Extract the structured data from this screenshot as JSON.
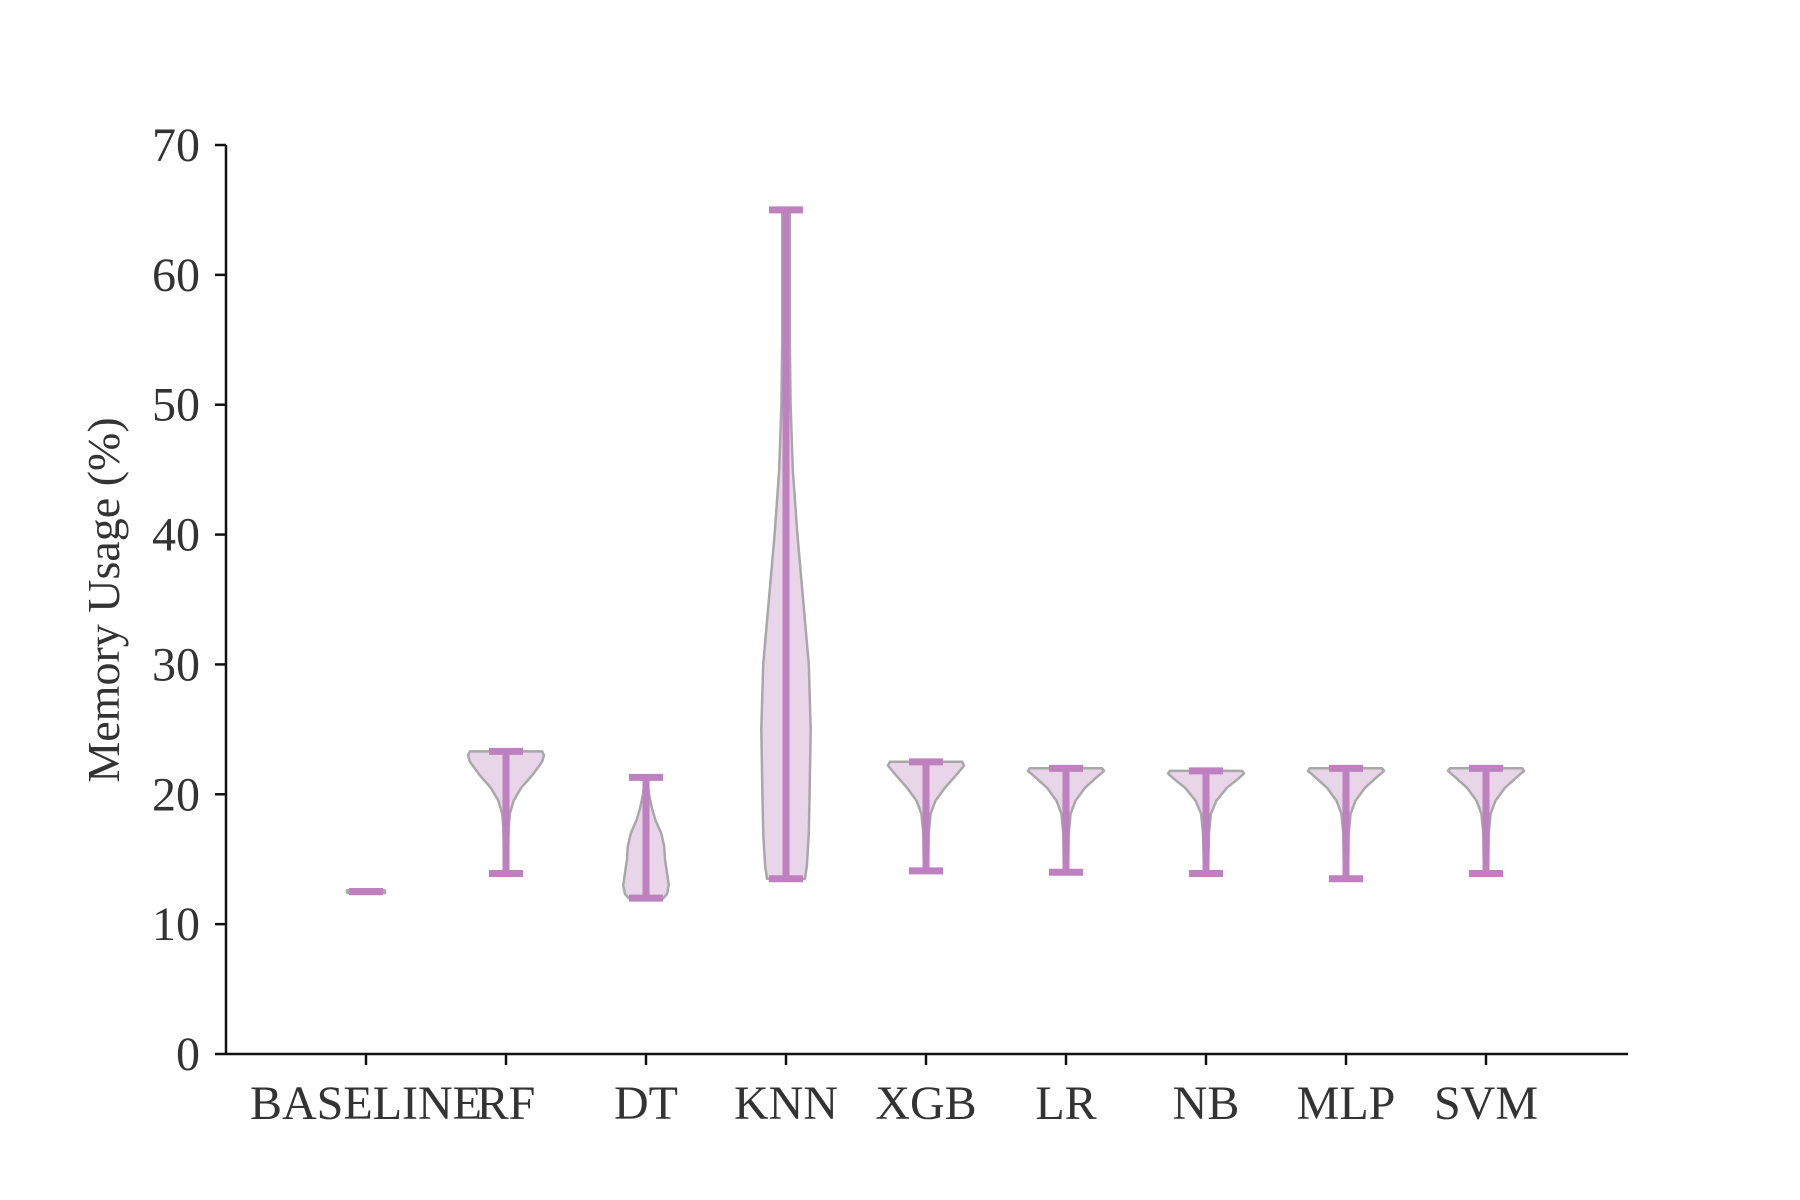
{
  "chart_data": {
    "type": "violin",
    "xlabel": "",
    "ylabel": "Memory Usage (%)",
    "ylim": [
      0,
      70
    ],
    "yticks": [
      0,
      10,
      20,
      30,
      40,
      50,
      60,
      70
    ],
    "grid": false,
    "categories": [
      "BASELINE",
      "RF",
      "DT",
      "KNN",
      "XGB",
      "LR",
      "NB",
      "MLP",
      "SVM"
    ],
    "series": [
      {
        "name": "",
        "min": 12.5,
        "max": 12.5,
        "profile": [
          [
            12.4,
            0.5
          ],
          [
            12.6,
            0.5
          ]
        ]
      },
      {
        "name": "",
        "min": 13.9,
        "max": 23.3,
        "profile": [
          [
            13.9,
            0.05
          ],
          [
            14.5,
            0.06
          ],
          [
            16.0,
            0.06
          ],
          [
            17.5,
            0.07
          ],
          [
            18.5,
            0.1
          ],
          [
            19.5,
            0.2
          ],
          [
            20.5,
            0.4
          ],
          [
            21.5,
            0.7
          ],
          [
            22.5,
            0.95
          ],
          [
            23.0,
            1.0
          ],
          [
            23.3,
            0.95
          ]
        ]
      },
      {
        "name": "",
        "min": 12.0,
        "max": 21.3,
        "profile": [
          [
            12.0,
            0.45
          ],
          [
            12.3,
            0.55
          ],
          [
            13.0,
            0.6
          ],
          [
            14.0,
            0.55
          ],
          [
            15.0,
            0.5
          ],
          [
            16.0,
            0.48
          ],
          [
            17.0,
            0.4
          ],
          [
            18.0,
            0.25
          ],
          [
            19.0,
            0.15
          ],
          [
            20.0,
            0.08
          ],
          [
            21.3,
            0.03
          ]
        ]
      },
      {
        "name": "",
        "min": 13.5,
        "max": 65.0,
        "profile": [
          [
            13.5,
            0.5
          ],
          [
            14.5,
            0.55
          ],
          [
            17.0,
            0.6
          ],
          [
            20.0,
            0.62
          ],
          [
            25.0,
            0.65
          ],
          [
            30.0,
            0.6
          ],
          [
            35.0,
            0.45
          ],
          [
            40.0,
            0.3
          ],
          [
            45.0,
            0.18
          ],
          [
            50.0,
            0.12
          ],
          [
            55.0,
            0.1
          ],
          [
            60.0,
            0.1
          ],
          [
            63.0,
            0.1
          ],
          [
            65.0,
            0.1
          ]
        ]
      },
      {
        "name": "",
        "min": 14.1,
        "max": 22.5,
        "profile": [
          [
            14.1,
            0.05
          ],
          [
            15.0,
            0.06
          ],
          [
            17.0,
            0.07
          ],
          [
            18.5,
            0.12
          ],
          [
            19.5,
            0.25
          ],
          [
            20.5,
            0.5
          ],
          [
            21.5,
            0.8
          ],
          [
            22.2,
            1.0
          ],
          [
            22.5,
            0.95
          ]
        ]
      },
      {
        "name": "",
        "min": 14.0,
        "max": 22.0,
        "profile": [
          [
            14.0,
            0.05
          ],
          [
            15.0,
            0.06
          ],
          [
            17.0,
            0.07
          ],
          [
            18.5,
            0.12
          ],
          [
            19.5,
            0.25
          ],
          [
            20.5,
            0.5
          ],
          [
            21.3,
            0.8
          ],
          [
            21.8,
            1.0
          ],
          [
            22.0,
            0.95
          ]
        ]
      },
      {
        "name": "",
        "min": 13.9,
        "max": 21.8,
        "profile": [
          [
            13.9,
            0.05
          ],
          [
            15.0,
            0.06
          ],
          [
            17.0,
            0.08
          ],
          [
            18.5,
            0.13
          ],
          [
            19.5,
            0.27
          ],
          [
            20.5,
            0.55
          ],
          [
            21.2,
            0.85
          ],
          [
            21.6,
            1.0
          ],
          [
            21.8,
            0.95
          ]
        ]
      },
      {
        "name": "",
        "min": 13.5,
        "max": 22.0,
        "profile": [
          [
            13.5,
            0.05
          ],
          [
            15.0,
            0.06
          ],
          [
            17.0,
            0.07
          ],
          [
            18.5,
            0.12
          ],
          [
            19.5,
            0.25
          ],
          [
            20.5,
            0.5
          ],
          [
            21.3,
            0.8
          ],
          [
            21.8,
            1.0
          ],
          [
            22.0,
            0.95
          ]
        ]
      },
      {
        "name": "",
        "min": 13.9,
        "max": 22.0,
        "profile": [
          [
            13.9,
            0.05
          ],
          [
            15.0,
            0.06
          ],
          [
            17.0,
            0.07
          ],
          [
            18.5,
            0.12
          ],
          [
            19.5,
            0.25
          ],
          [
            20.5,
            0.5
          ],
          [
            21.3,
            0.8
          ],
          [
            21.8,
            1.0
          ],
          [
            22.0,
            0.95
          ]
        ]
      }
    ],
    "colors": {
      "body_fill": "#e8d5e8",
      "body_edge": "#a8a8a8",
      "line": "#bf80bf",
      "axis": "#111111",
      "text": "#333333"
    }
  }
}
